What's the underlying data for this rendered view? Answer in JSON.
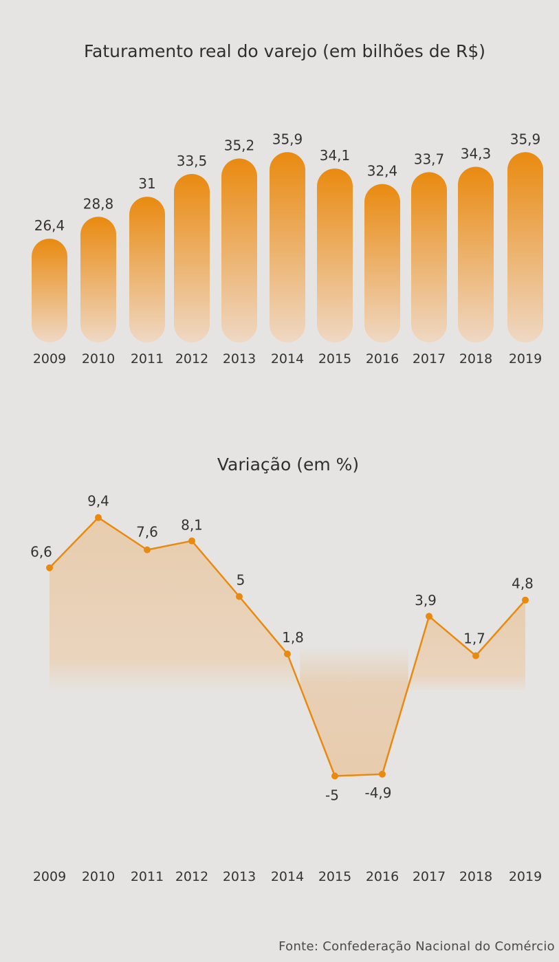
{
  "source": "Fonte: Confederação Nacional do Comércio",
  "colors": {
    "accent": "#e98a10",
    "bar_fade": "#efd8c4",
    "area_fill": "#e8c9a7",
    "background": "#e5e4e3"
  },
  "chart_data": [
    {
      "type": "bar",
      "title": "Faturamento real do varejo (em bilhões de R$)",
      "categories": [
        "2009",
        "2010",
        "2011",
        "2012",
        "2013",
        "2014",
        "2015",
        "2016",
        "2017",
        "2018",
        "2019"
      ],
      "values": [
        26.4,
        28.8,
        31,
        33.5,
        35.2,
        35.9,
        34.1,
        32.4,
        33.7,
        34.3,
        35.9
      ],
      "value_labels": [
        "26,4",
        "28,8",
        "31",
        "33,5",
        "35,2",
        "35,9",
        "34,1",
        "32,4",
        "33,7",
        "34,3",
        "35,9"
      ],
      "xlabel": "",
      "ylabel": "",
      "grid": false
    },
    {
      "type": "line",
      "title": "Variação (em %)",
      "categories": [
        "2009",
        "2010",
        "2011",
        "2012",
        "2013",
        "2014",
        "2015",
        "2016",
        "2017",
        "2018",
        "2019"
      ],
      "values": [
        6.6,
        9.4,
        7.6,
        8.1,
        5,
        1.8,
        -5,
        -4.9,
        3.9,
        1.7,
        4.8
      ],
      "value_labels": [
        "6,6",
        "9,4",
        "7,6",
        "8,1",
        "5",
        "1,8",
        "-5",
        "-4,9",
        "3,9",
        "1,7",
        "4,8"
      ],
      "xlabel": "",
      "ylabel": "",
      "grid": false,
      "area_fill": true
    }
  ]
}
